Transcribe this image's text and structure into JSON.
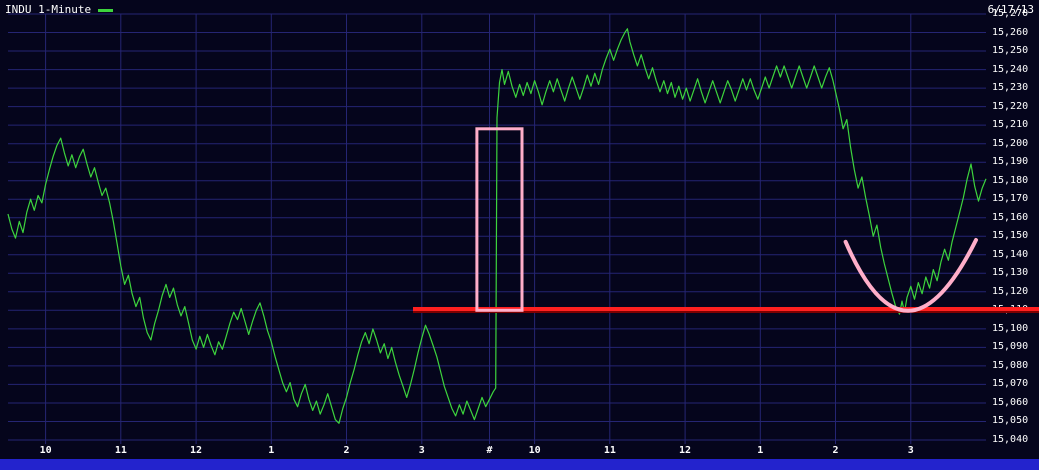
{
  "chart_data": {
    "type": "line",
    "title": "INDU 1-Minute",
    "symbol": "INDU",
    "interval": "1-Minute",
    "date_label": "6/17/13",
    "xlabel": "",
    "ylabel": "",
    "grid": true,
    "legend_position": "top-left",
    "ylim": [
      15040,
      15270
    ],
    "x_range_minutes": [
      0,
      780
    ],
    "colors": {
      "background": "#05051c",
      "grid": "#252573",
      "series": "#3dd43d",
      "axis_text": "#ffffff",
      "bottom_bar": "#2323cd",
      "red": "#ff2020",
      "pink": "#ffaec9"
    },
    "y_ticks": [
      {
        "value": 15270,
        "label": "15,270"
      },
      {
        "value": 15260,
        "label": "15,260"
      },
      {
        "value": 15250,
        "label": "15,250"
      },
      {
        "value": 15240,
        "label": "15,240"
      },
      {
        "value": 15230,
        "label": "15,230"
      },
      {
        "value": 15220,
        "label": "15,220"
      },
      {
        "value": 15210,
        "label": "15,210"
      },
      {
        "value": 15200,
        "label": "15,200"
      },
      {
        "value": 15190,
        "label": "15,190"
      },
      {
        "value": 15180,
        "label": "15,180"
      },
      {
        "value": 15170,
        "label": "15,170"
      },
      {
        "value": 15160,
        "label": "15,160"
      },
      {
        "value": 15150,
        "label": "15,150"
      },
      {
        "value": 15140,
        "label": "15,140"
      },
      {
        "value": 15130,
        "label": "15,130"
      },
      {
        "value": 15120,
        "label": "15,120"
      },
      {
        "value": 15110,
        "label": "15,110"
      },
      {
        "value": 15100,
        "label": "15,100"
      },
      {
        "value": 15090,
        "label": "15,090"
      },
      {
        "value": 15080,
        "label": "15,080"
      },
      {
        "value": 15070,
        "label": "15,070"
      },
      {
        "value": 15060,
        "label": "15,060"
      },
      {
        "value": 15050,
        "label": "15,050"
      },
      {
        "value": 15040,
        "label": "15,040"
      }
    ],
    "x_ticks": [
      {
        "minute": 30,
        "label": "10"
      },
      {
        "minute": 90,
        "label": "11"
      },
      {
        "minute": 150,
        "label": "12"
      },
      {
        "minute": 210,
        "label": "1"
      },
      {
        "minute": 270,
        "label": "2"
      },
      {
        "minute": 330,
        "label": "3"
      },
      {
        "minute": 384,
        "label": "#"
      },
      {
        "minute": 420,
        "label": "10"
      },
      {
        "minute": 480,
        "label": "11"
      },
      {
        "minute": 540,
        "label": "12"
      },
      {
        "minute": 600,
        "label": "1"
      },
      {
        "minute": 660,
        "label": "2"
      },
      {
        "minute": 720,
        "label": "3"
      }
    ],
    "series": [
      {
        "name": "INDU",
        "color": "#3dd43d",
        "points": [
          [
            0,
            15162
          ],
          [
            3,
            15154
          ],
          [
            6,
            15149
          ],
          [
            9,
            15158
          ],
          [
            12,
            15152
          ],
          [
            15,
            15163
          ],
          [
            18,
            15170
          ],
          [
            21,
            15164
          ],
          [
            24,
            15172
          ],
          [
            27,
            15168
          ],
          [
            30,
            15178
          ],
          [
            33,
            15186
          ],
          [
            36,
            15193
          ],
          [
            39,
            15199
          ],
          [
            42,
            15203
          ],
          [
            45,
            15195
          ],
          [
            48,
            15188
          ],
          [
            51,
            15194
          ],
          [
            54,
            15187
          ],
          [
            57,
            15193
          ],
          [
            60,
            15197
          ],
          [
            63,
            15189
          ],
          [
            66,
            15182
          ],
          [
            69,
            15187
          ],
          [
            72,
            15179
          ],
          [
            75,
            15172
          ],
          [
            78,
            15176
          ],
          [
            81,
            15168
          ],
          [
            84,
            15158
          ],
          [
            87,
            15146
          ],
          [
            90,
            15134
          ],
          [
            93,
            15124
          ],
          [
            96,
            15129
          ],
          [
            99,
            15119
          ],
          [
            102,
            15112
          ],
          [
            105,
            15117
          ],
          [
            108,
            15106
          ],
          [
            111,
            15098
          ],
          [
            114,
            15094
          ],
          [
            117,
            15103
          ],
          [
            120,
            15110
          ],
          [
            123,
            15118
          ],
          [
            126,
            15124
          ],
          [
            129,
            15117
          ],
          [
            132,
            15122
          ],
          [
            135,
            15113
          ],
          [
            138,
            15107
          ],
          [
            141,
            15112
          ],
          [
            144,
            15103
          ],
          [
            147,
            15094
          ],
          [
            150,
            15089
          ],
          [
            153,
            15096
          ],
          [
            156,
            15090
          ],
          [
            159,
            15097
          ],
          [
            162,
            15091
          ],
          [
            165,
            15086
          ],
          [
            168,
            15093
          ],
          [
            171,
            15089
          ],
          [
            174,
            15096
          ],
          [
            177,
            15103
          ],
          [
            180,
            15109
          ],
          [
            183,
            15105
          ],
          [
            186,
            15111
          ],
          [
            189,
            15104
          ],
          [
            192,
            15097
          ],
          [
            195,
            15104
          ],
          [
            198,
            15110
          ],
          [
            201,
            15114
          ],
          [
            204,
            15107
          ],
          [
            207,
            15099
          ],
          [
            210,
            15093
          ],
          [
            213,
            15085
          ],
          [
            216,
            15078
          ],
          [
            219,
            15071
          ],
          [
            222,
            15066
          ],
          [
            225,
            15071
          ],
          [
            228,
            15062
          ],
          [
            231,
            15058
          ],
          [
            234,
            15065
          ],
          [
            237,
            15070
          ],
          [
            240,
            15062
          ],
          [
            243,
            15056
          ],
          [
            246,
            15061
          ],
          [
            249,
            15054
          ],
          [
            252,
            15059
          ],
          [
            255,
            15065
          ],
          [
            258,
            15058
          ],
          [
            261,
            15051
          ],
          [
            264,
            15049
          ],
          [
            267,
            15057
          ],
          [
            270,
            15063
          ],
          [
            273,
            15071
          ],
          [
            276,
            15078
          ],
          [
            279,
            15086
          ],
          [
            282,
            15093
          ],
          [
            285,
            15098
          ],
          [
            288,
            15092
          ],
          [
            291,
            15100
          ],
          [
            294,
            15094
          ],
          [
            297,
            15087
          ],
          [
            300,
            15092
          ],
          [
            303,
            15084
          ],
          [
            306,
            15090
          ],
          [
            309,
            15082
          ],
          [
            312,
            15075
          ],
          [
            315,
            15069
          ],
          [
            318,
            15063
          ],
          [
            321,
            15070
          ],
          [
            324,
            15078
          ],
          [
            327,
            15087
          ],
          [
            330,
            15095
          ],
          [
            333,
            15102
          ],
          [
            336,
            15097
          ],
          [
            339,
            15091
          ],
          [
            342,
            15085
          ],
          [
            345,
            15077
          ],
          [
            348,
            15069
          ],
          [
            351,
            15063
          ],
          [
            354,
            15057
          ],
          [
            357,
            15053
          ],
          [
            360,
            15059
          ],
          [
            363,
            15054
          ],
          [
            366,
            15061
          ],
          [
            369,
            15056
          ],
          [
            372,
            15051
          ],
          [
            375,
            15057
          ],
          [
            378,
            15063
          ],
          [
            381,
            15058
          ],
          [
            384,
            15062
          ],
          [
            387,
            15066
          ],
          [
            389,
            15068
          ],
          [
            390,
            15214
          ],
          [
            391,
            15224
          ],
          [
            392,
            15233
          ],
          [
            394,
            15240
          ],
          [
            396,
            15232
          ],
          [
            399,
            15239
          ],
          [
            402,
            15231
          ],
          [
            405,
            15225
          ],
          [
            408,
            15232
          ],
          [
            411,
            15226
          ],
          [
            414,
            15233
          ],
          [
            417,
            15227
          ],
          [
            420,
            15234
          ],
          [
            423,
            15228
          ],
          [
            426,
            15221
          ],
          [
            429,
            15228
          ],
          [
            432,
            15234
          ],
          [
            435,
            15228
          ],
          [
            438,
            15235
          ],
          [
            441,
            15229
          ],
          [
            444,
            15223
          ],
          [
            447,
            15230
          ],
          [
            450,
            15236
          ],
          [
            453,
            15230
          ],
          [
            456,
            15224
          ],
          [
            459,
            15230
          ],
          [
            462,
            15237
          ],
          [
            465,
            15231
          ],
          [
            468,
            15238
          ],
          [
            471,
            15232
          ],
          [
            474,
            15240
          ],
          [
            477,
            15246
          ],
          [
            480,
            15251
          ],
          [
            483,
            15245
          ],
          [
            486,
            15251
          ],
          [
            489,
            15256
          ],
          [
            492,
            15260
          ],
          [
            494,
            15262
          ],
          [
            496,
            15255
          ],
          [
            499,
            15248
          ],
          [
            502,
            15242
          ],
          [
            505,
            15248
          ],
          [
            508,
            15241
          ],
          [
            511,
            15235
          ],
          [
            514,
            15241
          ],
          [
            517,
            15234
          ],
          [
            520,
            15228
          ],
          [
            523,
            15234
          ],
          [
            526,
            15227
          ],
          [
            529,
            15233
          ],
          [
            532,
            15225
          ],
          [
            535,
            15231
          ],
          [
            538,
            15224
          ],
          [
            541,
            15230
          ],
          [
            544,
            15223
          ],
          [
            547,
            15229
          ],
          [
            550,
            15235
          ],
          [
            553,
            15228
          ],
          [
            556,
            15222
          ],
          [
            559,
            15228
          ],
          [
            562,
            15234
          ],
          [
            565,
            15228
          ],
          [
            568,
            15222
          ],
          [
            571,
            15228
          ],
          [
            574,
            15234
          ],
          [
            577,
            15229
          ],
          [
            580,
            15223
          ],
          [
            583,
            15229
          ],
          [
            586,
            15235
          ],
          [
            589,
            15229
          ],
          [
            592,
            15235
          ],
          [
            595,
            15229
          ],
          [
            598,
            15224
          ],
          [
            601,
            15230
          ],
          [
            604,
            15236
          ],
          [
            607,
            15230
          ],
          [
            610,
            15236
          ],
          [
            613,
            15242
          ],
          [
            616,
            15236
          ],
          [
            619,
            15242
          ],
          [
            622,
            15236
          ],
          [
            625,
            15230
          ],
          [
            628,
            15236
          ],
          [
            631,
            15242
          ],
          [
            634,
            15236
          ],
          [
            637,
            15230
          ],
          [
            640,
            15236
          ],
          [
            643,
            15242
          ],
          [
            646,
            15236
          ],
          [
            649,
            15230
          ],
          [
            652,
            15236
          ],
          [
            655,
            15241
          ],
          [
            658,
            15234
          ],
          [
            660,
            15228
          ],
          [
            663,
            15219
          ],
          [
            666,
            15208
          ],
          [
            669,
            15213
          ],
          [
            672,
            15198
          ],
          [
            675,
            15186
          ],
          [
            678,
            15176
          ],
          [
            681,
            15182
          ],
          [
            684,
            15171
          ],
          [
            687,
            15161
          ],
          [
            690,
            15150
          ],
          [
            693,
            15156
          ],
          [
            696,
            15144
          ],
          [
            699,
            15135
          ],
          [
            702,
            15127
          ],
          [
            705,
            15119
          ],
          [
            708,
            15112
          ],
          [
            711,
            15108
          ],
          [
            713,
            15115
          ],
          [
            715,
            15109
          ],
          [
            717,
            15117
          ],
          [
            720,
            15123
          ],
          [
            723,
            15116
          ],
          [
            726,
            15125
          ],
          [
            729,
            15119
          ],
          [
            732,
            15128
          ],
          [
            735,
            15122
          ],
          [
            738,
            15132
          ],
          [
            741,
            15126
          ],
          [
            744,
            15136
          ],
          [
            747,
            15143
          ],
          [
            750,
            15137
          ],
          [
            753,
            15147
          ],
          [
            756,
            15155
          ],
          [
            759,
            15163
          ],
          [
            762,
            15171
          ],
          [
            765,
            15181
          ],
          [
            768,
            15189
          ],
          [
            771,
            15177
          ],
          [
            774,
            15169
          ],
          [
            777,
            15176
          ],
          [
            780,
            15181
          ]
        ]
      }
    ],
    "annotations": {
      "red_line": {
        "price": 15110,
        "start_minute": 323,
        "extend_to_right_edge": true,
        "color": "#ff2020",
        "thickness": 4
      },
      "highlight_rect": {
        "start_minute": 374,
        "end_minute": 410,
        "price_top": 15208,
        "price_bottom": 15110,
        "color": "#ffaec9",
        "thickness": 3
      },
      "v_curve": {
        "start": [
          668,
          15147
        ],
        "control": [
          716,
          15072
        ],
        "end": [
          772,
          15148
        ],
        "color": "#ffaec9",
        "thickness": 4
      }
    }
  }
}
